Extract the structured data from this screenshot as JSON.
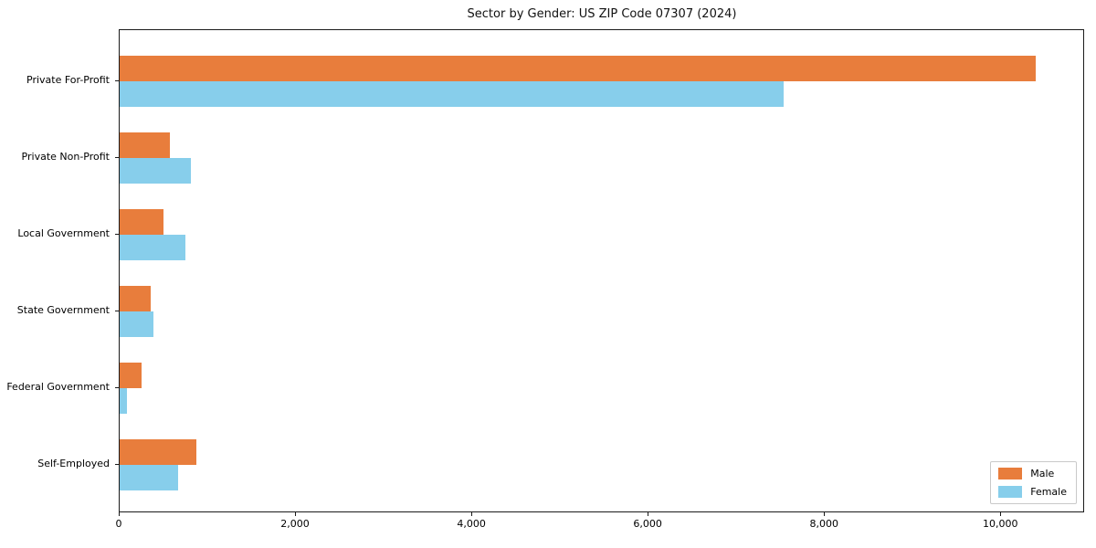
{
  "chart_data": {
    "type": "bar",
    "orientation": "horizontal",
    "title": "Sector by Gender: US ZIP Code 07307 (2024)",
    "xlabel": "",
    "ylabel": "",
    "categories": [
      "Private For-Profit",
      "Private Non-Profit",
      "Local Government",
      "State Government",
      "Federal Government",
      "Self-Employed"
    ],
    "series": [
      {
        "name": "Male",
        "color": "#e87d3c",
        "values": [
          10410,
          570,
          500,
          350,
          250,
          870
        ]
      },
      {
        "name": "Female",
        "color": "#87ceeb",
        "values": [
          7550,
          810,
          750,
          385,
          80,
          665
        ]
      }
    ],
    "xlim": [
      0,
      10950
    ],
    "x_ticks": [
      0,
      2000,
      4000,
      6000,
      8000,
      10000
    ],
    "x_tick_labels": [
      "0",
      "2,000",
      "4,000",
      "6,000",
      "8,000",
      "10,000"
    ],
    "grid": false,
    "legend": {
      "position": "lower right",
      "entries": [
        "Male",
        "Female"
      ]
    }
  }
}
